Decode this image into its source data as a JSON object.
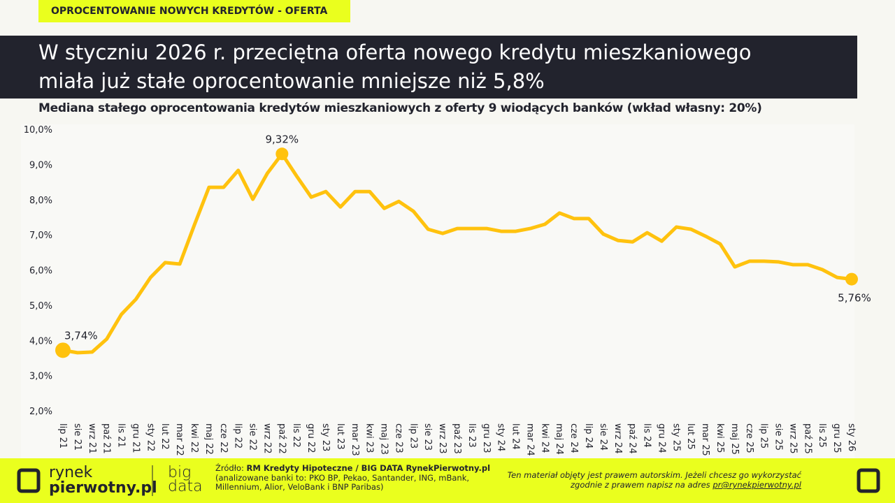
{
  "header": {
    "tag": "OPROCENTOWANIE NOWYCH KREDYTÓW - OFERTA",
    "title_lines": [
      "W styczniu 2026 r. przeciętna oferta nowego kredytu mieszkaniowego",
      "miała już stałe oprocentowanie mniejsze niż 5,8%"
    ]
  },
  "chart_data": {
    "type": "line",
    "title": "Mediana stałego oprocentowania kredytów mieszkaniowych z oferty 9 wiodących banków (wkład własny: 20%)",
    "categories": [
      "lip 21",
      "sie 21",
      "wrz 21",
      "paź 21",
      "lis 21",
      "gru 21",
      "sty 22",
      "lut 22",
      "mar 22",
      "kwi 22",
      "maj 22",
      "cze 22",
      "lip 22",
      "sie 22",
      "wrz 22",
      "paź 22",
      "lis 22",
      "gru 22",
      "sty 23",
      "lut 23",
      "mar 23",
      "kwi 23",
      "maj 23",
      "cze 23",
      "lip 23",
      "sie 23",
      "wrz 23",
      "paź 23",
      "lis 23",
      "gru 23",
      "sty 24",
      "lut 24",
      "mar 24",
      "kwi 24",
      "maj 24",
      "cze 24",
      "lip 24",
      "sie 24",
      "wrz 24",
      "paź 24",
      "lis 24",
      "gru 24",
      "sty 25",
      "lut 25",
      "mar 25",
      "kwi 25",
      "maj 25",
      "cze 25",
      "lip 25",
      "sie 25",
      "wrz 25",
      "paź 25",
      "lis 25",
      "gru 25",
      "sty 26"
    ],
    "values": [
      3.74,
      3.67,
      3.69,
      4.06,
      4.76,
      5.19,
      5.81,
      6.23,
      6.19,
      7.3,
      8.37,
      8.37,
      8.85,
      8.03,
      8.77,
      9.32,
      8.69,
      8.09,
      8.25,
      7.81,
      8.25,
      8.25,
      7.77,
      7.97,
      7.69,
      7.18,
      7.06,
      7.2,
      7.2,
      7.2,
      7.12,
      7.12,
      7.2,
      7.32,
      7.64,
      7.48,
      7.48,
      7.04,
      6.86,
      6.82,
      7.08,
      6.84,
      7.24,
      7.18,
      6.98,
      6.76,
      6.11,
      6.27,
      6.27,
      6.25,
      6.17,
      6.17,
      6.03,
      5.81,
      5.76
    ],
    "value_labels": [
      "3,74%",
      null,
      null,
      null,
      null,
      null,
      null,
      null,
      null,
      null,
      null,
      null,
      null,
      null,
      null,
      "9,32%",
      null,
      null,
      null,
      null,
      null,
      null,
      null,
      null,
      null,
      null,
      null,
      null,
      null,
      null,
      null,
      null,
      null,
      null,
      null,
      null,
      null,
      null,
      null,
      null,
      null,
      null,
      null,
      null,
      null,
      null,
      null,
      null,
      null,
      null,
      null,
      null,
      null,
      null,
      "5,76%"
    ],
    "color": "#ffc20e",
    "ylim": [
      2,
      10
    ],
    "yticks": [
      {
        "value": 2,
        "label": "2,0%"
      },
      {
        "value": 3,
        "label": "3,0%"
      },
      {
        "value": 4,
        "label": "4,0%"
      },
      {
        "value": 5,
        "label": "5,0%"
      },
      {
        "value": 6,
        "label": "6,0%"
      },
      {
        "value": 7,
        "label": "7,0%"
      },
      {
        "value": 8,
        "label": "8,0%"
      },
      {
        "value": 9,
        "label": "9,0%"
      },
      {
        "value": 10,
        "label": "10,0%"
      }
    ],
    "grid": false
  },
  "footer": {
    "logo_line1": "rynek",
    "logo_line2": "pierwotny.pl",
    "bigdata_line1": "big",
    "bigdata_line2": "data",
    "source_prefix": "Źródło: ",
    "source_bold": "RM Kredyty Hipoteczne / BIG DATA RynekPierwotny.pl",
    "source_line2": "(analizowane banki to: PKO BP, Pekao, Santander, ING, mBank,",
    "source_line3": "Millennium, Alior, VeloBank i BNP Paribas)",
    "copyright_line1": "Ten materiał objęty jest prawem autorskim. Jeżeli chcesz go wykorzystać",
    "copyright_line2": "zgodnie z prawem napisz na adres ",
    "email": "pr@rynekpierwotny.pl"
  }
}
